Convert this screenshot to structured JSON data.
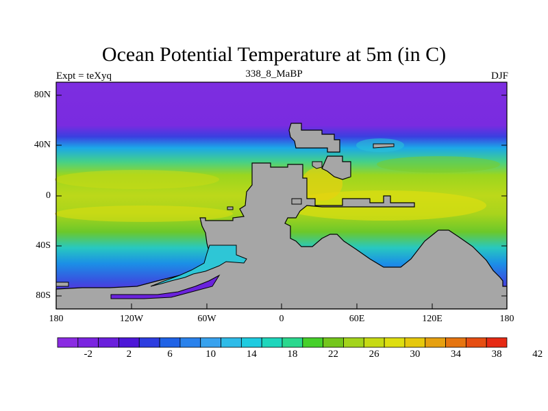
{
  "title": "Ocean Potential Temperature at 5m (in C)",
  "subtitle_left": "Expt = teXyq",
  "subtitle_center": "338_8_MaBP",
  "subtitle_right": "DJF",
  "colors": {
    "land": "#a6a6a6",
    "cold": "#7d2ee0",
    "cool": "#18c2e6",
    "warm": "#9bd61e",
    "hot": "#e6dc10"
  },
  "lat_ticks": [
    "80N",
    "40N",
    "0",
    "40S",
    "80S"
  ],
  "lon_ticks": [
    "180",
    "120W",
    "60W",
    "0",
    "60E",
    "120E",
    "180"
  ],
  "colorbar": {
    "colors": [
      "#8a2be2",
      "#7a24e0",
      "#6a1fdc",
      "#4d17d8",
      "#2d3de0",
      "#1f62e6",
      "#2a82ec",
      "#38a2ee",
      "#2ebbe8",
      "#1ecbe0",
      "#1ed6bc",
      "#2ad88e",
      "#46d02a",
      "#74c61c",
      "#a3d41c",
      "#c6da14",
      "#dede10",
      "#e6c80c",
      "#e6a010",
      "#e67510",
      "#e64e12",
      "#e62a14"
    ],
    "labels": [
      "-2",
      "2",
      "6",
      "10",
      "14",
      "18",
      "22",
      "26",
      "30",
      "34",
      "38",
      "42"
    ]
  }
}
